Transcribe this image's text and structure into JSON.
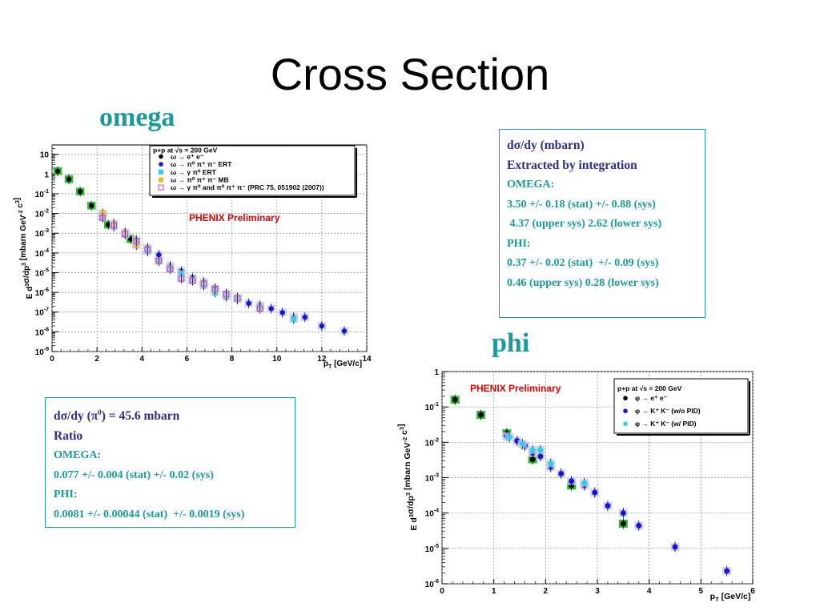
{
  "slide": {
    "title": "Cross Section",
    "omega_label": "omega",
    "phi_label": "phi"
  },
  "box_right": {
    "lines": [
      {
        "text": "dσ/dy (mbarn)",
        "style": "navy"
      },
      {
        "text": "Extracted by integration",
        "style": "navy"
      },
      {
        "text": "OMEGA:",
        "style": "teal"
      },
      {
        "text": "3.50 +/- 0.18 (stat) +/- 0.88 (sys)",
        "style": "teal"
      },
      {
        "text": " 4.37 (upper sys) 2.62 (lower sys)",
        "style": "teal"
      },
      {
        "text": "",
        "style": "teal"
      },
      {
        "text": "PHI:",
        "style": "teal"
      },
      {
        "text": "0.37 +/- 0.02 (stat)  +/- 0.09 (sys)",
        "style": "teal"
      },
      {
        "text": "0.46 (upper sys) 0.28 (lower sys)",
        "style": "teal"
      }
    ]
  },
  "box_left": {
    "line1_prefix": "dσ/dy (π",
    "line1_sup": "0",
    "line1_suffix": ") = 45.6 mbarn",
    "lines": [
      {
        "text": "Ratio",
        "style": "navy"
      },
      {
        "text": "OMEGA:",
        "style": "teal"
      },
      {
        "text": "0.077 +/- 0.004 (stat) +/- 0.02 (sys)",
        "style": "teal"
      },
      {
        "text": "PHI:",
        "style": "teal"
      },
      {
        "text": "0.0081 +/- 0.00044 (stat)  +/- 0.0019 (sys)",
        "style": "teal"
      }
    ]
  },
  "chart_data": [
    {
      "type": "scatter",
      "name": "omega",
      "xlabel": "p_T [GeV/c]",
      "ylabel": "E d^3σ/dp^3 [mbarn GeV^-2 c^3]",
      "log_y": true,
      "xlim": [
        0,
        14
      ],
      "ylim": [
        1e-09,
        30
      ],
      "x_ticks": [
        0,
        2,
        4,
        6,
        8,
        10,
        12,
        14
      ],
      "y_ticks": [
        -9,
        -8,
        -7,
        -6,
        -5,
        -4,
        -3,
        -2,
        -1,
        0,
        1
      ],
      "grid": true,
      "annotation": {
        "text": "PHENIX Preliminary",
        "color": "#e00000"
      },
      "legend": {
        "placement": "top-right",
        "header": "p+p at √s = 200 GeV",
        "entries": [
          "ω → e⁺ e⁻",
          "ω → π⁰ π⁺ π⁻ ERT",
          "ω → γ π⁰ ERT",
          "ω → π⁰ π⁺ π⁻ MB",
          "ω → γ π⁰ and π⁰ π⁺ π⁻ (PRC 75, 051902 (2007))"
        ]
      },
      "series": [
        {
          "name": "ω → e⁺ e⁻",
          "color": "#000000",
          "marker": "circle",
          "x": [
            0.25,
            0.75,
            1.25,
            1.75,
            2.5,
            3.5
          ],
          "y": [
            1.4,
            0.55,
            0.13,
            0.025,
            0.0027,
            0.0005
          ]
        },
        {
          "name": "ω → π⁰ π⁺ π⁻ ERT",
          "color": "#1515d6",
          "marker": "circle",
          "x": [
            2.25,
            2.75,
            3.25,
            3.75,
            4.25,
            4.75,
            5.25,
            5.75,
            6.25,
            6.75,
            7.25,
            7.75,
            8.25,
            8.75,
            9.25,
            9.75,
            10.25,
            10.75,
            11.25,
            12.0,
            13.0
          ],
          "y": [
            0.007,
            0.0028,
            0.0011,
            0.00045,
            0.00018,
            8e-05,
            2.2e-05,
            1.2e-05,
            5.5e-06,
            3.3e-06,
            1.6e-06,
            8.5e-07,
            5.5e-07,
            2.8e-07,
            2.2e-07,
            1.5e-07,
            9.5e-08,
            5.5e-08,
            5.5e-08,
            2e-08,
            1.1e-08
          ]
        },
        {
          "name": "ω → γ π⁰ ERT",
          "color": "#29d2e6",
          "marker": "square",
          "x": [
            2.25,
            2.75,
            3.25,
            3.75,
            4.25,
            4.75,
            5.25,
            5.75,
            6.25,
            6.75,
            7.25,
            7.75,
            8.25,
            9.25,
            10.75
          ],
          "y": [
            0.0085,
            0.0022,
            0.0009,
            0.0003,
            0.00012,
            4e-05,
            1.8e-05,
            9e-06,
            4e-06,
            2.2e-06,
            1e-06,
            6e-07,
            4.5e-07,
            1.8e-07,
            4.5e-08
          ]
        },
        {
          "name": "ω → π⁰ π⁺ π⁻ MB",
          "color": "#f0b81e",
          "marker": "square",
          "x": [
            2.25,
            2.75,
            3.25,
            3.75
          ],
          "y": [
            0.01,
            0.003,
            0.001,
            0.00025
          ]
        },
        {
          "name": "ω → γ π⁰ and π⁰ π⁺ π⁻ (PRC 75, 051902 (2007))",
          "color": "#d040d0",
          "marker": "open-square",
          "x": [
            2.25,
            2.75,
            3.25,
            3.75,
            4.25,
            4.75,
            5.25,
            5.75,
            6.25,
            6.75,
            7.25,
            7.75,
            8.25,
            9.25
          ],
          "y": [
            0.006,
            0.0025,
            0.0009,
            0.0004,
            0.00015,
            4e-05,
            1.5e-05,
            5e-06,
            4e-06,
            2.8e-06,
            1.5e-06,
            8e-07,
            5e-07,
            1.5e-07
          ]
        }
      ]
    },
    {
      "type": "scatter",
      "name": "phi",
      "xlabel": "p_T [GeV/c]",
      "ylabel": "E d^3σ/dp^3 [mbarn GeV^-2 c^3]",
      "log_y": true,
      "xlim": [
        0,
        6
      ],
      "ylim": [
        1e-06,
        1
      ],
      "x_ticks": [
        0,
        1,
        2,
        3,
        4,
        5,
        6
      ],
      "y_ticks": [
        -6,
        -5,
        -4,
        -3,
        -2,
        -1,
        0
      ],
      "grid": true,
      "annotation": {
        "text": "PHENIX Preliminary",
        "color": "#e00000"
      },
      "legend": {
        "placement": "top-right",
        "header": "p+p at √s = 200 GeV",
        "entries": [
          "φ → e⁺ e⁻",
          "φ → K⁺ K⁻ (w/o PID)",
          "φ → K⁺ K⁻ (w/ PID)"
        ]
      },
      "series": [
        {
          "name": "φ → e⁺ e⁻",
          "color": "#000000",
          "marker": "circle",
          "x": [
            0.25,
            0.75,
            1.25,
            1.75,
            2.5,
            3.5
          ],
          "y": [
            0.16,
            0.06,
            0.018,
            0.0033,
            0.0006,
            5e-05
          ]
        },
        {
          "name": "φ → K⁺ K⁻ (w/o PID)",
          "color": "#1515d6",
          "marker": "circle",
          "x": [
            1.25,
            1.45,
            1.6,
            1.75,
            1.9,
            2.1,
            2.3,
            2.5,
            2.75,
            2.95,
            3.2,
            3.5,
            3.8,
            4.5,
            5.5
          ],
          "y": [
            0.015,
            0.011,
            0.008,
            0.005,
            0.004,
            0.002,
            0.0013,
            0.0008,
            0.0006,
            0.00038,
            0.00016,
            0.0001,
            4.4e-05,
            1.1e-05,
            2.3e-06
          ]
        },
        {
          "name": "φ → K⁺ K⁻ (w/ PID)",
          "color": "#29d2e6",
          "marker": "circle",
          "x": [
            1.3,
            1.55,
            1.75,
            1.9,
            2.1,
            2.75
          ],
          "y": [
            0.014,
            0.009,
            0.006,
            0.006,
            0.0025,
            0.0007
          ]
        }
      ]
    }
  ]
}
